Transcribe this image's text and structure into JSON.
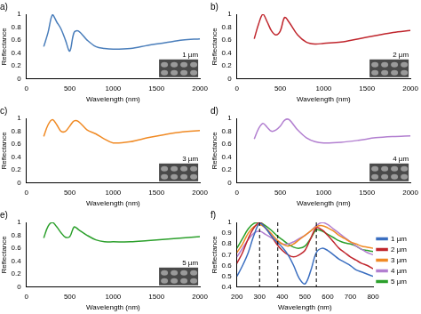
{
  "chart_data": [
    {
      "type": "line",
      "title": "a)",
      "x_label": "Wavelength (nm)",
      "y_label": "Reflectance",
      "annotations": [
        "1 µm"
      ],
      "x": [
        200,
        250,
        300,
        350,
        400,
        450,
        500,
        550,
        600,
        700,
        800,
        900,
        1000,
        1200,
        1400,
        1600,
        1800,
        2000
      ],
      "series": [
        {
          "name": "1 µm",
          "color": "#4a7ebb",
          "values": [
            0.5,
            0.72,
            0.99,
            0.88,
            0.77,
            0.6,
            0.43,
            0.72,
            0.74,
            0.6,
            0.5,
            0.47,
            0.46,
            0.47,
            0.52,
            0.56,
            0.6,
            0.62
          ]
        }
      ],
      "xlim": [
        0,
        2000
      ],
      "xticks": [
        0,
        500,
        1000,
        1500,
        2000
      ],
      "ylim": [
        0,
        1
      ],
      "yticks": [
        0,
        0.2,
        0.4,
        0.6,
        0.8,
        1
      ],
      "grid": false
    },
    {
      "type": "line",
      "title": "b)",
      "x_label": "Wavelength (nm)",
      "y_label": "Reflectance",
      "annotations": [
        "2 µm"
      ],
      "x": [
        200,
        250,
        300,
        350,
        400,
        450,
        500,
        550,
        600,
        700,
        800,
        900,
        1000,
        1200,
        1400,
        1600,
        1800,
        2000
      ],
      "series": [
        {
          "name": "2 µm",
          "color": "#c0262d",
          "values": [
            0.62,
            0.85,
            1.0,
            0.88,
            0.74,
            0.68,
            0.74,
            0.95,
            0.88,
            0.68,
            0.57,
            0.54,
            0.55,
            0.57,
            0.62,
            0.67,
            0.72,
            0.75
          ]
        }
      ],
      "xlim": [
        0,
        2000
      ],
      "xticks": [
        0,
        500,
        1000,
        1500,
        2000
      ],
      "ylim": [
        0,
        1
      ],
      "yticks": [
        0,
        0.2,
        0.4,
        0.6,
        0.8,
        1
      ],
      "grid": false
    },
    {
      "type": "line",
      "title": "c)",
      "x_label": "Wavelength (nm)",
      "y_label": "Reflectance",
      "annotations": [
        "3 µm"
      ],
      "x": [
        200,
        250,
        300,
        350,
        400,
        450,
        500,
        550,
        600,
        700,
        800,
        900,
        1000,
        1200,
        1400,
        1600,
        1800,
        2000
      ],
      "series": [
        {
          "name": "3 µm",
          "color": "#f08a24",
          "values": [
            0.72,
            0.9,
            0.98,
            0.9,
            0.8,
            0.8,
            0.88,
            0.96,
            0.95,
            0.82,
            0.76,
            0.68,
            0.62,
            0.64,
            0.7,
            0.75,
            0.79,
            0.81
          ]
        }
      ],
      "xlim": [
        0,
        2000
      ],
      "xticks": [
        0,
        500,
        1000,
        1500,
        2000
      ],
      "ylim": [
        0,
        1
      ],
      "yticks": [
        0,
        0.2,
        0.4,
        0.6,
        0.8,
        1
      ],
      "grid": false
    },
    {
      "type": "line",
      "title": "d)",
      "x_label": "Wavelength (nm)",
      "y_label": "Reflectance",
      "annotations": [
        "4 µm"
      ],
      "x": [
        200,
        250,
        300,
        350,
        400,
        450,
        500,
        550,
        600,
        700,
        800,
        900,
        1000,
        1200,
        1400,
        1600,
        1800,
        2000
      ],
      "series": [
        {
          "name": "4 µm",
          "color": "#b27fd0",
          "values": [
            0.68,
            0.84,
            0.92,
            0.86,
            0.8,
            0.82,
            0.88,
            0.97,
            0.98,
            0.82,
            0.7,
            0.64,
            0.62,
            0.63,
            0.66,
            0.7,
            0.72,
            0.73
          ]
        }
      ],
      "xlim": [
        0,
        2000
      ],
      "xticks": [
        0,
        500,
        1000,
        1500,
        2000
      ],
      "ylim": [
        0,
        1
      ],
      "yticks": [
        0,
        0.2,
        0.4,
        0.6,
        0.8,
        1
      ],
      "grid": false
    },
    {
      "type": "line",
      "title": "e)",
      "x_label": "Wavelength (nm)",
      "y_label": "Reflectance",
      "annotations": [
        "5 µm"
      ],
      "x": [
        200,
        250,
        300,
        350,
        400,
        450,
        500,
        550,
        600,
        700,
        800,
        900,
        1000,
        1200,
        1400,
        1600,
        1800,
        2000
      ],
      "series": [
        {
          "name": "5 µm",
          "color": "#2ca02c",
          "values": [
            0.76,
            0.94,
            1.0,
            0.93,
            0.84,
            0.77,
            0.78,
            0.93,
            0.89,
            0.8,
            0.73,
            0.7,
            0.7,
            0.7,
            0.72,
            0.74,
            0.76,
            0.78
          ]
        }
      ],
      "xlim": [
        0,
        2000
      ],
      "xticks": [
        0,
        500,
        1000,
        1500,
        2000
      ],
      "ylim": [
        0,
        1
      ],
      "yticks": [
        0,
        0.2,
        0.4,
        0.6,
        0.8,
        1
      ],
      "grid": false
    },
    {
      "type": "line",
      "title": "f)",
      "x_label": "Wavelength (nm)",
      "y_label": "Reflectance",
      "legend": "right",
      "reference_lines": [
        300,
        380,
        550
      ],
      "x": [
        200,
        225,
        250,
        275,
        300,
        325,
        350,
        375,
        400,
        425,
        450,
        475,
        500,
        525,
        550,
        575,
        600,
        625,
        650,
        675,
        700,
        725,
        750,
        775,
        800
      ],
      "series": [
        {
          "name": "1 µm",
          "color": "#3a6ec0",
          "values": [
            0.5,
            0.6,
            0.72,
            0.88,
            0.99,
            0.95,
            0.88,
            0.82,
            0.77,
            0.7,
            0.6,
            0.48,
            0.43,
            0.55,
            0.72,
            0.76,
            0.74,
            0.7,
            0.66,
            0.63,
            0.6,
            0.56,
            0.54,
            0.52,
            0.5
          ]
        },
        {
          "name": "2 µm",
          "color": "#c0262d",
          "values": [
            0.62,
            0.72,
            0.85,
            0.95,
            1.0,
            0.95,
            0.88,
            0.8,
            0.74,
            0.7,
            0.68,
            0.7,
            0.74,
            0.85,
            0.95,
            0.93,
            0.88,
            0.82,
            0.76,
            0.72,
            0.68,
            0.65,
            0.62,
            0.6,
            0.57
          ]
        },
        {
          "name": "3 µm",
          "color": "#f08a24",
          "values": [
            0.72,
            0.8,
            0.9,
            0.96,
            0.98,
            0.95,
            0.9,
            0.84,
            0.8,
            0.78,
            0.8,
            0.84,
            0.88,
            0.92,
            0.96,
            0.97,
            0.95,
            0.92,
            0.88,
            0.85,
            0.82,
            0.8,
            0.78,
            0.77,
            0.76
          ]
        },
        {
          "name": "4 µm",
          "color": "#b27fd0",
          "values": [
            0.68,
            0.76,
            0.84,
            0.9,
            0.92,
            0.89,
            0.86,
            0.83,
            0.8,
            0.8,
            0.82,
            0.85,
            0.88,
            0.92,
            0.97,
            1.0,
            0.98,
            0.94,
            0.9,
            0.86,
            0.82,
            0.78,
            0.75,
            0.72,
            0.7
          ]
        },
        {
          "name": "5 µm",
          "color": "#2ca02c",
          "values": [
            0.76,
            0.85,
            0.94,
            0.99,
            1.0,
            0.97,
            0.93,
            0.88,
            0.84,
            0.8,
            0.77,
            0.76,
            0.78,
            0.85,
            0.93,
            0.92,
            0.89,
            0.86,
            0.83,
            0.81,
            0.8,
            0.78,
            0.75,
            0.74,
            0.73
          ]
        }
      ],
      "xlim": [
        200,
        800
      ],
      "xticks": [
        200,
        300,
        400,
        500,
        600,
        700,
        800
      ],
      "ylim": [
        0.4,
        1
      ],
      "yticks": [
        0.4,
        0.5,
        0.6,
        0.7,
        0.8,
        0.9,
        1
      ],
      "grid": false
    }
  ]
}
